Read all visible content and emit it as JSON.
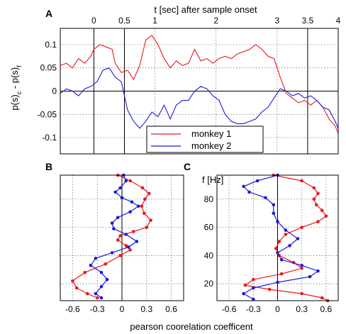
{
  "colors": {
    "monkey1": "#e8191c",
    "monkey2": "#1b1bd8"
  },
  "chart_data": [
    {
      "panel": "A",
      "type": "line",
      "xlabel": "t [sec] after sample onset",
      "ylabel_parts": [
        "p(s)",
        "c",
        " - p(s)",
        "f"
      ],
      "xlim": [
        -0.55,
        4.0
      ],
      "ylim": [
        -0.135,
        0.135
      ],
      "x_ticks": [
        0,
        0.5,
        1,
        2,
        3,
        3.5,
        4
      ],
      "x_tick_labels": [
        "0",
        "0.5",
        "1",
        "2",
        "3",
        "3.5",
        "4"
      ],
      "y_ticks": [
        0.1,
        0.05,
        0,
        -0.05,
        -0.1
      ],
      "y_tick_labels": [
        "0.1",
        "0.05",
        "0",
        "-0.05",
        "-0.1"
      ],
      "vlines": [
        0,
        0.5,
        3.5
      ],
      "legend": {
        "placement": "lower-center",
        "entries": [
          "monkey 1",
          "monkey 2"
        ]
      },
      "series": [
        {
          "name": "monkey 1",
          "color": "#e8191c",
          "x": [
            -0.55,
            -0.45,
            -0.35,
            -0.25,
            -0.15,
            -0.05,
            0.0,
            0.1,
            0.2,
            0.3,
            0.35,
            0.45,
            0.55,
            0.65,
            0.75,
            0.85,
            0.95,
            1.05,
            1.15,
            1.25,
            1.35,
            1.45,
            1.55,
            1.65,
            1.75,
            1.85,
            1.95,
            2.05,
            2.15,
            2.25,
            2.35,
            2.45,
            2.55,
            2.65,
            2.75,
            2.85,
            2.95,
            3.05,
            3.15,
            3.25,
            3.35,
            3.45,
            3.55,
            3.65,
            3.75,
            3.85,
            3.95,
            4.0
          ],
          "y": [
            0.055,
            0.06,
            0.05,
            0.07,
            0.06,
            0.075,
            0.09,
            0.1,
            0.095,
            0.09,
            0.06,
            0.04,
            0.045,
            0.025,
            0.055,
            0.11,
            0.12,
            0.1,
            0.07,
            0.05,
            0.065,
            0.055,
            0.06,
            0.09,
            0.065,
            0.07,
            0.06,
            0.07,
            0.075,
            0.07,
            0.08,
            0.085,
            0.09,
            0.1,
            0.09,
            0.075,
            0.07,
            0.03,
            -0.005,
            -0.015,
            -0.025,
            -0.02,
            -0.03,
            -0.02,
            -0.035,
            -0.06,
            -0.075,
            -0.09
          ]
        },
        {
          "name": "monkey 2",
          "color": "#1b1bd8",
          "x": [
            -0.55,
            -0.45,
            -0.35,
            -0.25,
            -0.15,
            -0.05,
            0.05,
            0.15,
            0.25,
            0.35,
            0.45,
            0.55,
            0.65,
            0.75,
            0.85,
            0.95,
            1.05,
            1.15,
            1.25,
            1.35,
            1.45,
            1.55,
            1.65,
            1.75,
            1.85,
            1.95,
            2.05,
            2.15,
            2.25,
            2.35,
            2.45,
            2.55,
            2.65,
            2.75,
            2.85,
            2.95,
            3.05,
            3.15,
            3.25,
            3.35,
            3.45,
            3.55,
            3.65,
            3.75,
            3.85,
            3.95,
            4.0
          ],
          "y": [
            -0.005,
            0.005,
            0.0,
            -0.01,
            0.005,
            0.01,
            0.02,
            0.045,
            0.05,
            0.03,
            0.02,
            -0.04,
            -0.065,
            -0.08,
            -0.065,
            -0.045,
            -0.055,
            -0.03,
            -0.06,
            -0.03,
            -0.02,
            -0.02,
            0.0,
            0.01,
            0.005,
            -0.01,
            -0.02,
            -0.05,
            -0.065,
            -0.07,
            -0.07,
            -0.065,
            -0.06,
            -0.045,
            -0.035,
            -0.015,
            0.005,
            0.0,
            -0.01,
            -0.005,
            -0.015,
            -0.01,
            -0.02,
            -0.035,
            -0.04,
            -0.065,
            -0.08
          ]
        }
      ]
    },
    {
      "panel": "B",
      "type": "line",
      "xlim": [
        -0.75,
        0.75
      ],
      "ylim": [
        8,
        97
      ],
      "x_ticks": [
        -0.6,
        -0.3,
        0,
        0.3,
        0.6
      ],
      "x_tick_labels": [
        "-0.6",
        "-0.3",
        "0",
        "0.3",
        "0.6"
      ],
      "series": [
        {
          "name": "monkey 1",
          "color": "#e8191c",
          "x": [
            -0.05,
            0.1,
            0.25,
            0.33,
            0.28,
            0.24,
            0.27,
            0.35,
            0.3,
            0.14,
            -0.02,
            -0.05,
            0.05,
            0.1,
            -0.02,
            -0.2,
            -0.45,
            -0.6,
            -0.55,
            -0.42,
            -0.3
          ],
          "y": [
            97,
            93,
            88,
            84,
            80,
            75,
            70,
            65,
            60,
            57,
            54,
            51,
            47,
            44,
            40,
            34,
            28,
            22,
            17,
            13,
            10
          ]
        },
        {
          "name": "monkey 2",
          "color": "#1b1bd8",
          "x": [
            0.02,
            0.05,
            -0.02,
            -0.08,
            0.0,
            0.12,
            0.2,
            0.1,
            -0.05,
            -0.12,
            -0.1,
            0.05,
            0.18,
            0.08,
            -0.12,
            -0.32,
            -0.38,
            -0.25,
            -0.18,
            -0.25,
            -0.32,
            -0.25
          ],
          "y": [
            97,
            93,
            88,
            85,
            81,
            78,
            75,
            71,
            67,
            63,
            59,
            55,
            50,
            46,
            42,
            38,
            33,
            28,
            23,
            18,
            13,
            10
          ]
        }
      ]
    },
    {
      "panel": "C",
      "type": "line",
      "xlabel": "pearson coorelation coefficent",
      "ylabel": "f [Hz]",
      "xlim": [
        -0.75,
        0.75
      ],
      "ylim": [
        8,
        97
      ],
      "x_ticks": [
        -0.6,
        -0.3,
        0,
        0.3,
        0.6
      ],
      "x_tick_labels": [
        "-0.6",
        "-0.3",
        "0",
        "0.3",
        "0.6"
      ],
      "y_ticks": [
        80,
        60,
        40,
        20
      ],
      "y_tick_labels": [
        "80",
        "60",
        "40",
        "20"
      ],
      "series": [
        {
          "name": "monkey 1",
          "color": "#e8191c",
          "x": [
            -0.05,
            0.3,
            0.45,
            0.5,
            0.45,
            0.48,
            0.55,
            0.6,
            0.5,
            0.3,
            0.1,
            0.02,
            -0.02,
            0.02,
            0.2,
            0.3,
            0.05,
            -0.3,
            -0.4,
            -0.1,
            0.3,
            0.55,
            0.62
          ],
          "y": [
            97,
            93,
            88,
            84,
            80,
            76,
            72,
            68,
            64,
            60,
            55,
            50,
            45,
            40,
            35,
            31,
            27,
            23,
            19,
            16,
            13,
            10,
            8
          ]
        },
        {
          "name": "monkey 2",
          "color": "#1b1bd8",
          "x": [
            0.0,
            -0.25,
            -0.42,
            -0.35,
            -0.15,
            -0.05,
            -0.05,
            0.0,
            0.1,
            0.25,
            0.15,
            0.0,
            0.05,
            0.3,
            0.5,
            0.4,
            0.0,
            -0.3,
            -0.42,
            -0.3
          ],
          "y": [
            97,
            93,
            89,
            85,
            81,
            76,
            70,
            64,
            58,
            52,
            47,
            42,
            37,
            33,
            29,
            25,
            21,
            17,
            13,
            9
          ]
        }
      ]
    }
  ],
  "legend": {
    "entries": [
      "monkey 1",
      "monkey 2"
    ]
  }
}
